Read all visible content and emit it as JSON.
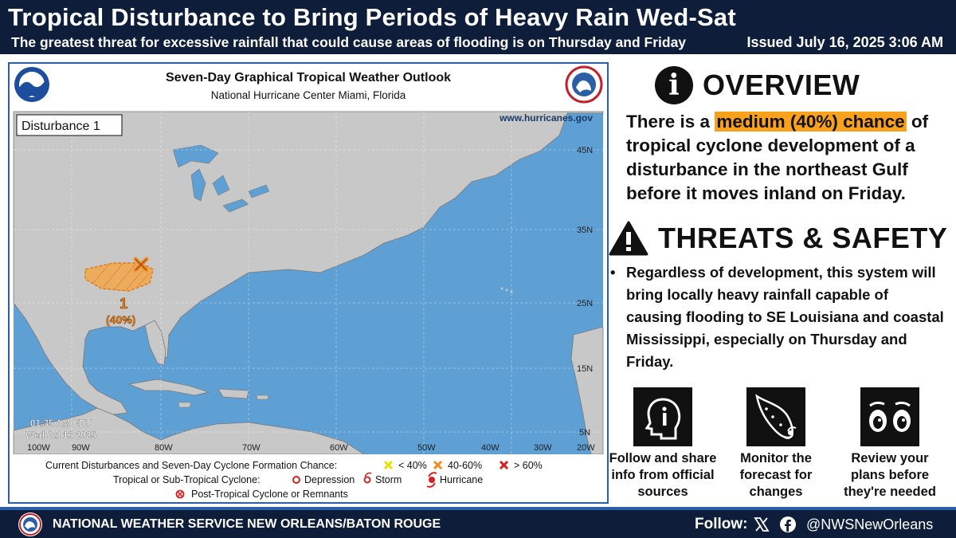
{
  "header": {
    "title": "Tropical Disturbance to Bring Periods of Heavy Rain Wed-Sat",
    "subtitle": "The greatest threat for excessive rainfall that could cause areas of flooding  is on Thursday and Friday",
    "issued": "Issued July 16, 2025 3:06 AM"
  },
  "map": {
    "title": "Seven-Day Graphical Tropical Weather Outlook",
    "subtitle": "National Hurricane Center  Miami, Florida",
    "website": "www.hurricanes.gov",
    "disturbance_label": "Disturbance 1",
    "timestamp_time": "01:35 AM EDT",
    "timestamp_date": "Wed Jul 16 2025",
    "area_number": "1",
    "area_chance": "(40%)",
    "lat_labels": [
      "45N",
      "35N",
      "25N",
      "15N",
      "5N"
    ],
    "lon_labels": [
      "100W",
      "90W",
      "80W",
      "70W",
      "60W",
      "50W",
      "40W",
      "30W",
      "20W"
    ],
    "legend": {
      "row1_label": "Current Disturbances and Seven-Day Cyclone Formation Chance:",
      "low": "< 40%",
      "medium": "40-60%",
      "high": "> 60%",
      "row2_label": "Tropical or Sub-Tropical Cyclone:",
      "depression": "Depression",
      "storm": "Storm",
      "hurricane": "Hurricane",
      "row3_label": "Post-Tropical Cyclone or Remnants"
    },
    "colors": {
      "ocean": "#5e9fd4",
      "land": "#c8c8c8",
      "area": "#f3a64a",
      "marker": "#f58a1f"
    }
  },
  "overview": {
    "heading": "OVERVIEW",
    "text_before": "There is a ",
    "highlight": "medium (40%) chance",
    "text_after": " of tropical cyclone development of a disturbance in the northeast Gulf before it moves inland on Friday."
  },
  "threats": {
    "heading": "THREATS & SAFETY",
    "bullet": "•",
    "text": "Regardless of development, this system will bring locally heavy rainfall capable of causing flooding to SE Louisiana and coastal Mississippi, especially on Thursday and Friday."
  },
  "tips": [
    {
      "icon": "head-info-icon",
      "caption": "Follow and share info from official sources"
    },
    {
      "icon": "hurricane-track-icon",
      "caption": "Monitor the forecast for changes"
    },
    {
      "icon": "eyes-icon",
      "caption": "Review your plans before they're needed"
    }
  ],
  "footer": {
    "office": "NATIONAL WEATHER SERVICE NEW ORLEANS/BATON ROUGE",
    "follow": "Follow:",
    "handle": "@NWSNewOrleans"
  }
}
